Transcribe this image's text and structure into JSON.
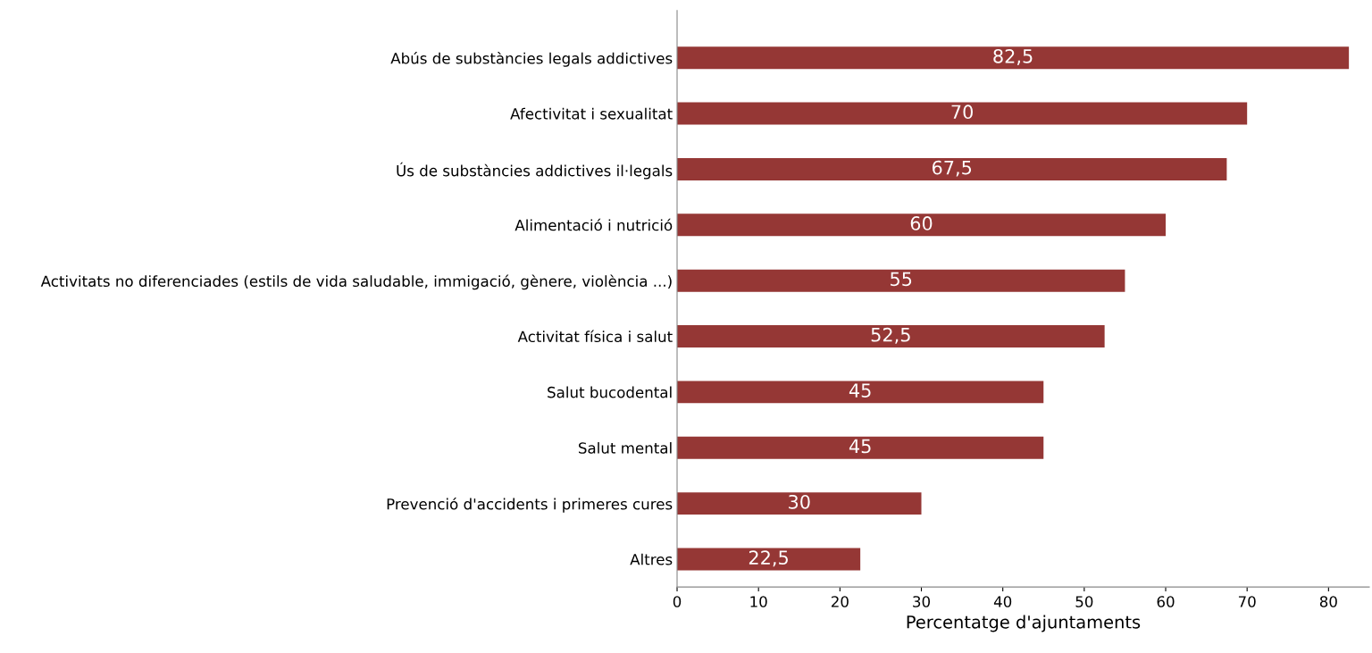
{
  "chart_data": {
    "type": "bar",
    "orientation": "horizontal",
    "xlabel": "Percentatge d'ajuntaments",
    "categories": [
      "Abús de substàncies legals addictives",
      "Afectivitat i sexualitat",
      "Ús de substàncies addictives il·legals",
      "Alimentació i nutrició",
      "Activitats no diferenciades (estils de vida saludable, immigació, gènere, violència ...)",
      "Activitat física i salut",
      "Salut bucodental",
      "Salut mental",
      "Prevenció d'accidents i primeres cures",
      "Altres"
    ],
    "values": [
      82.5,
      70,
      67.5,
      60,
      55,
      52.5,
      45,
      45,
      30,
      22.5
    ],
    "value_labels": [
      "82,5",
      "70",
      "67,5",
      "60",
      "55",
      "52,5",
      "45",
      "45",
      "30",
      "22,5"
    ],
    "color": "#953735",
    "xlim": [
      0,
      85
    ],
    "xticks": [
      0,
      10,
      20,
      30,
      40,
      50,
      60,
      70,
      80
    ],
    "grid": false,
    "legend": false
  }
}
